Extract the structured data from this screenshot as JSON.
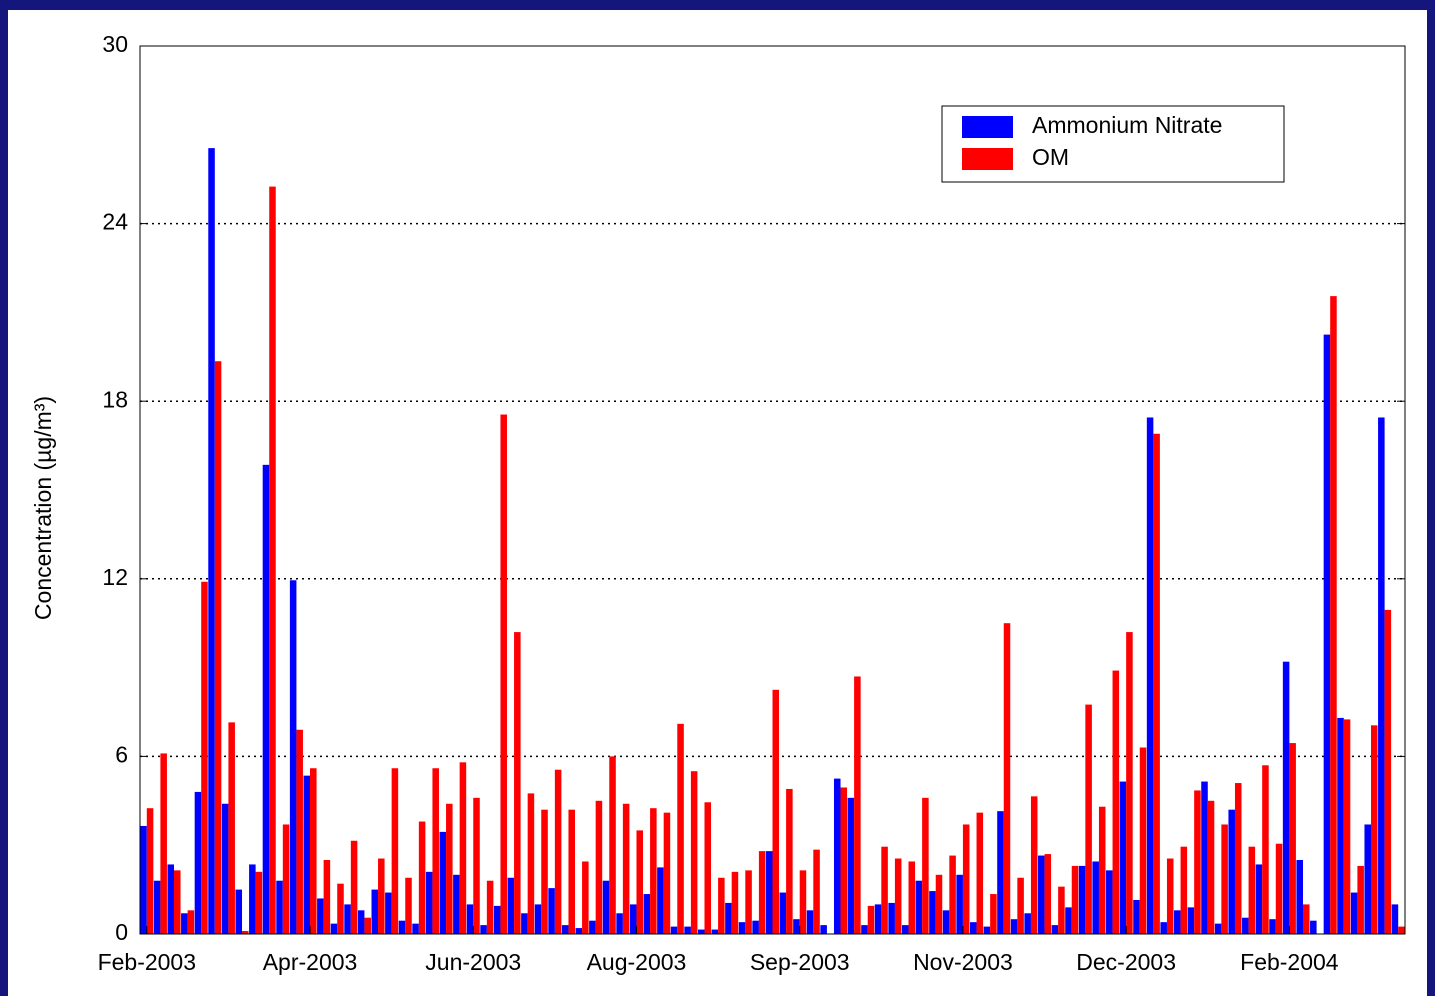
{
  "chart_data": {
    "type": "bar",
    "y_label": "Concentration (µg/m³)",
    "categories": [
      "Feb-2003",
      null,
      null,
      null,
      null,
      null,
      null,
      null,
      null,
      null,
      null,
      null,
      "Apr-2003",
      null,
      null,
      null,
      null,
      null,
      null,
      null,
      null,
      null,
      null,
      null,
      "Jun-2003",
      null,
      null,
      null,
      null,
      null,
      null,
      null,
      null,
      null,
      null,
      null,
      "Aug-2003",
      null,
      null,
      null,
      null,
      null,
      null,
      null,
      null,
      null,
      null,
      null,
      "Sep-2003",
      null,
      null,
      null,
      null,
      null,
      null,
      null,
      null,
      null,
      null,
      null,
      "Nov-2003",
      null,
      null,
      null,
      null,
      null,
      null,
      null,
      null,
      null,
      null,
      null,
      "Dec-2003",
      null,
      null,
      null,
      null,
      null,
      null,
      null,
      null,
      null,
      null,
      null,
      "Feb-2004",
      null,
      null,
      null,
      null,
      null,
      null,
      null,
      null
    ],
    "series": [
      {
        "name": "Ammonium Nitrate",
        "color": "#0000ff",
        "values": [
          3.65,
          1.8,
          2.35,
          0.7,
          4.8,
          26.55,
          4.4,
          1.5,
          2.35,
          15.85,
          1.8,
          11.95,
          5.35,
          1.2,
          0.35,
          1.0,
          0.8,
          1.5,
          1.4,
          0.45,
          0.35,
          2.1,
          3.45,
          2.0,
          1.0,
          0.3,
          0.95,
          1.9,
          0.7,
          1.0,
          1.55,
          0.3,
          0.2,
          0.45,
          1.8,
          0.7,
          1.0,
          1.35,
          2.25,
          0.25,
          0.25,
          0.15,
          0.15,
          1.05,
          0.4,
          0.45,
          2.8,
          1.4,
          0.5,
          0.8,
          0.3,
          5.25,
          4.6,
          0.3,
          1.0,
          1.05,
          0.3,
          1.8,
          1.45,
          0.8,
          2.0,
          0.4,
          0.25,
          4.15,
          0.5,
          0.7,
          2.65,
          0.3,
          0.9,
          2.3,
          2.45,
          2.15,
          5.15,
          1.15,
          17.45,
          0.4,
          0.8,
          0.9,
          5.15,
          0.35,
          4.2,
          0.55,
          2.35,
          0.5,
          9.2,
          2.5,
          0.45,
          20.25,
          7.3,
          1.4,
          3.7,
          17.45,
          1.0
        ]
      },
      {
        "name": "OM",
        "color": "#ff0000",
        "values": [
          4.25,
          6.1,
          2.15,
          0.8,
          11.9,
          19.35,
          7.15,
          0.1,
          2.1,
          25.25,
          3.7,
          6.9,
          5.6,
          2.5,
          1.7,
          3.15,
          0.55,
          2.55,
          5.6,
          1.9,
          3.8,
          5.6,
          4.4,
          5.8,
          4.6,
          1.8,
          17.55,
          10.2,
          4.75,
          4.2,
          5.55,
          4.2,
          2.45,
          4.5,
          6.0,
          4.4,
          3.5,
          4.25,
          4.1,
          7.1,
          5.5,
          4.45,
          1.9,
          2.1,
          2.15,
          2.8,
          8.25,
          4.9,
          2.15,
          2.85,
          0,
          4.95,
          8.7,
          0.95,
          2.95,
          2.55,
          2.45,
          4.6,
          2.0,
          2.65,
          3.7,
          4.1,
          1.35,
          10.5,
          1.9,
          4.65,
          2.7,
          1.6,
          2.3,
          7.75,
          4.3,
          8.9,
          10.2,
          6.3,
          16.9,
          2.55,
          2.95,
          4.85,
          4.5,
          3.7,
          5.1,
          2.95,
          5.7,
          3.05,
          6.45,
          1.0,
          0,
          21.55,
          7.25,
          2.3,
          7.05,
          10.95,
          0.25
        ]
      }
    ],
    "ylim": [
      0,
      30
    ],
    "yticks": [
      0,
      6,
      12,
      18,
      24,
      30
    ],
    "grid": true
  }
}
